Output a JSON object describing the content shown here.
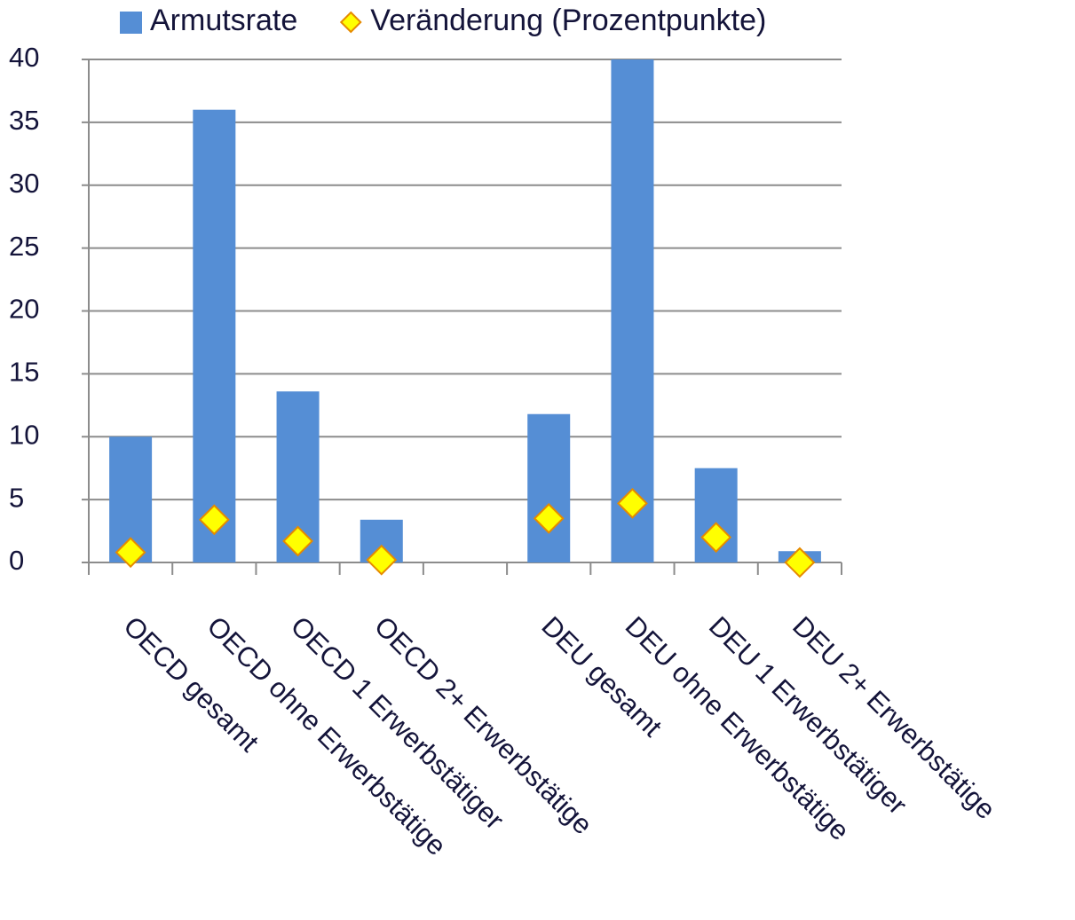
{
  "chart_data": {
    "type": "bar",
    "categories": [
      "OECD gesamt",
      "OECD ohne Erwerbstätige",
      "OECD 1 Erwerbstätiger",
      "OECD 2+ Erwerbstätige",
      null,
      "DEU gesamt",
      "DEU ohne Erwerbstätige",
      "DEU 1 Erwerbstätiger",
      "DEU 2+ Erwerbstätige"
    ],
    "series": [
      {
        "name": "Armutsrate",
        "type": "bar",
        "color": "#558ed5",
        "values": [
          10.0,
          36.0,
          13.6,
          3.4,
          null,
          11.8,
          40.0,
          7.5,
          0.9
        ]
      },
      {
        "name": "Veränderung (Prozentpunkte)",
        "type": "marker",
        "color": "#ffff00",
        "values": [
          0.8,
          3.4,
          1.7,
          0.2,
          null,
          3.5,
          4.7,
          2.0,
          0.0
        ]
      }
    ],
    "ylim": [
      0,
      40
    ],
    "yticks": [
      0,
      5,
      10,
      15,
      20,
      25,
      30,
      35,
      40
    ],
    "grid": true,
    "legend": "top"
  }
}
